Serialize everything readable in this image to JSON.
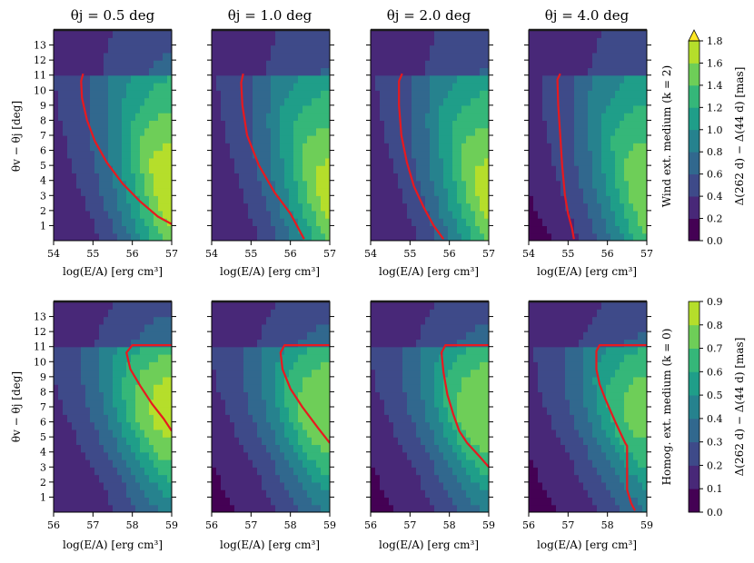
{
  "figure": {
    "columns_title": [
      "θj = 0.5 deg",
      "θj = 1.0 deg",
      "θj = 2.0 deg",
      "θj = 4.0 deg"
    ],
    "theta_j_values": [
      0.5,
      1.0,
      2.0,
      4.0
    ],
    "xlabel": "log(E/A) [erg cm³]",
    "ylabel": "θv − θj [deg]",
    "colormap": [
      "#440154",
      "#482878",
      "#3e4a89",
      "#31688e",
      "#26828e",
      "#1f9e89",
      "#35b779",
      "#6ece58",
      "#b5de2b",
      "#fde725"
    ],
    "contour_color": "#e8191f"
  },
  "chart_data": [
    {
      "type": "heatmap",
      "row": "top",
      "row_label": "Wind ext. medium (k = 2)",
      "colorbar_label": "Δ(262 d) − Δ(44 d) [mas]",
      "colorbar_ticks": [
        "0.0",
        "0.2",
        "0.4",
        "0.6",
        "0.8",
        "1.0",
        "1.2",
        "1.4",
        "1.6",
        "1.8"
      ],
      "colorbar_range": [
        0.0,
        1.8
      ],
      "colorbar_extend": "max",
      "x_range": [
        54,
        57
      ],
      "x_ticks": [
        "54",
        "55",
        "56",
        "57"
      ],
      "y_range": [
        0,
        14
      ],
      "y_ticks": [
        "1",
        "2",
        "3",
        "4",
        "5",
        "6",
        "7",
        "8",
        "9",
        "10",
        "11",
        "12",
        "13"
      ],
      "panels": [
        {
          "theta_j": 0.5,
          "peak": 1.8,
          "contour": [
            [
              54.75,
              11.1
            ],
            [
              54.7,
              10.6
            ],
            [
              54.72,
              9.5
            ],
            [
              54.85,
              8.0
            ],
            [
              55.05,
              6.6
            ],
            [
              55.35,
              5.2
            ],
            [
              55.75,
              3.8
            ],
            [
              56.2,
              2.6
            ],
            [
              56.65,
              1.6
            ],
            [
              57.0,
              1.1
            ]
          ]
        },
        {
          "theta_j": 1.0,
          "peak": 1.7,
          "contour": [
            [
              54.8,
              11.1
            ],
            [
              54.75,
              10.5
            ],
            [
              54.78,
              9.0
            ],
            [
              54.9,
              7.0
            ],
            [
              55.2,
              5.0
            ],
            [
              55.6,
              3.2
            ],
            [
              56.0,
              1.8
            ],
            [
              56.35,
              0.1
            ]
          ]
        },
        {
          "theta_j": 2.0,
          "peak": 1.7,
          "contour": [
            [
              54.8,
              11.1
            ],
            [
              54.72,
              10.6
            ],
            [
              54.72,
              9.0
            ],
            [
              54.78,
              7.0
            ],
            [
              54.92,
              5.2
            ],
            [
              55.1,
              3.6
            ],
            [
              55.35,
              2.2
            ],
            [
              55.6,
              1.0
            ],
            [
              55.85,
              0.1
            ]
          ]
        },
        {
          "theta_j": 4.0,
          "peak": 1.6,
          "contour": [
            [
              54.8,
              11.1
            ],
            [
              54.73,
              10.7
            ],
            [
              54.75,
              9.0
            ],
            [
              54.8,
              7.0
            ],
            [
              54.85,
              5.0
            ],
            [
              54.92,
              3.0
            ],
            [
              55.0,
              1.8
            ],
            [
              55.1,
              0.8
            ],
            [
              55.15,
              0.1
            ]
          ]
        }
      ]
    },
    {
      "type": "heatmap",
      "row": "bottom",
      "row_label": "Homog. ext. medium (k = 0)",
      "colorbar_label": "Δ(262 d) − Δ(44 d) [mas]",
      "colorbar_ticks": [
        "0.0",
        "0.1",
        "0.2",
        "0.3",
        "0.4",
        "0.5",
        "0.6",
        "0.7",
        "0.8",
        "0.9"
      ],
      "colorbar_range": [
        0.0,
        0.9
      ],
      "colorbar_extend": "neither",
      "x_range": [
        56,
        59
      ],
      "x_ticks": [
        "56",
        "57",
        "58",
        "59"
      ],
      "y_range": [
        0,
        14
      ],
      "y_ticks": [
        "1",
        "2",
        "3",
        "4",
        "5",
        "6",
        "7",
        "8",
        "9",
        "10",
        "11",
        "12",
        "13"
      ],
      "panels": [
        {
          "theta_j": 0.5,
          "peak": 0.85,
          "contour": [
            [
              59.0,
              11.1
            ],
            [
              58.0,
              11.1
            ],
            [
              57.85,
              10.6
            ],
            [
              57.95,
              9.5
            ],
            [
              58.2,
              8.4
            ],
            [
              58.5,
              7.2
            ],
            [
              58.8,
              6.2
            ],
            [
              59.0,
              5.4
            ]
          ]
        },
        {
          "theta_j": 1.0,
          "peak": 0.8,
          "contour": [
            [
              59.0,
              11.1
            ],
            [
              57.85,
              11.1
            ],
            [
              57.75,
              10.6
            ],
            [
              57.8,
              9.5
            ],
            [
              58.0,
              8.2
            ],
            [
              58.3,
              7.0
            ],
            [
              58.7,
              5.6
            ],
            [
              59.0,
              4.6
            ]
          ]
        },
        {
          "theta_j": 2.0,
          "peak": 0.8,
          "contour": [
            [
              59.0,
              11.1
            ],
            [
              57.9,
              11.1
            ],
            [
              57.8,
              10.6
            ],
            [
              57.85,
              9.3
            ],
            [
              57.95,
              7.8
            ],
            [
              58.1,
              6.5
            ],
            [
              58.25,
              5.4
            ],
            [
              58.45,
              4.6
            ],
            [
              58.8,
              3.6
            ],
            [
              59.0,
              3.0
            ]
          ]
        },
        {
          "theta_j": 4.0,
          "peak": 0.75,
          "contour": [
            [
              59.0,
              11.1
            ],
            [
              57.8,
              11.1
            ],
            [
              57.72,
              10.7
            ],
            [
              57.72,
              9.5
            ],
            [
              57.8,
              8.5
            ],
            [
              57.95,
              7.5
            ],
            [
              58.2,
              6.0
            ],
            [
              58.45,
              4.6
            ],
            [
              58.5,
              4.4
            ],
            [
              58.5,
              1.5
            ],
            [
              58.6,
              0.6
            ],
            [
              58.7,
              0.1
            ]
          ]
        }
      ]
    }
  ]
}
